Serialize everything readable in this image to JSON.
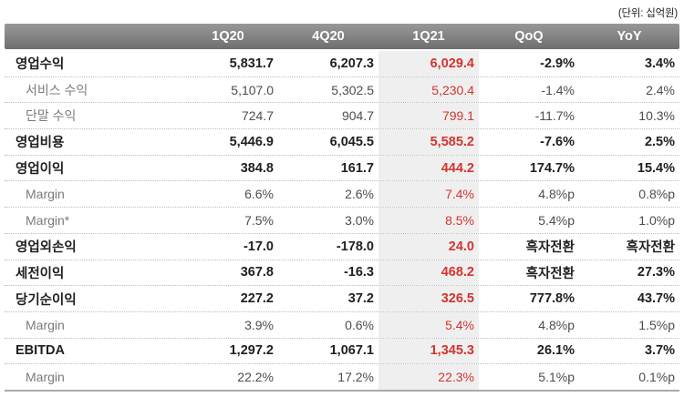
{
  "unit_label": "(단위: 십억원)",
  "colors": {
    "accent_red": "#d3342e",
    "header_bg": "#7f7f7f",
    "header_text": "#ffffff",
    "highlight_bg": "#efefef",
    "main_text": "#1f1f1f",
    "sub_text": "#7b7b7b"
  },
  "table": {
    "columns": [
      "",
      "1Q20",
      "4Q20",
      "1Q21",
      "QoQ",
      "YoY"
    ],
    "highlight_column": "1Q21",
    "rows": [
      {
        "label": "영업수익",
        "style": "main",
        "values": [
          "5,831.7",
          "6,207.3",
          "6,029.4",
          "-2.9%",
          "3.4%"
        ]
      },
      {
        "label": "서비스 수익",
        "style": "sub",
        "values": [
          "5,107.0",
          "5,302.5",
          "5,230.4",
          "-1.4%",
          "2.4%"
        ]
      },
      {
        "label": "단말 수익",
        "style": "sub",
        "values": [
          "724.7",
          "904.7",
          "799.1",
          "-11.7%",
          "10.3%"
        ]
      },
      {
        "label": "영업비용",
        "style": "main",
        "values": [
          "5,446.9",
          "6,045.5",
          "5,585.2",
          "-7.6%",
          "2.5%"
        ]
      },
      {
        "label": "영업이익",
        "style": "main",
        "values": [
          "384.8",
          "161.7",
          "444.2",
          "174.7%",
          "15.4%"
        ]
      },
      {
        "label": "Margin",
        "style": "sub",
        "values": [
          "6.6%",
          "2.6%",
          "7.4%",
          "4.8%p",
          "0.8%p"
        ]
      },
      {
        "label": "Margin*",
        "style": "sub",
        "values": [
          "7.5%",
          "3.0%",
          "8.5%",
          "5.4%p",
          "1.0%p"
        ]
      },
      {
        "label": "영업외손익",
        "style": "main",
        "values": [
          "-17.0",
          "-178.0",
          "24.0",
          "흑자전환",
          "흑자전환"
        ]
      },
      {
        "label": "세전이익",
        "style": "main",
        "values": [
          "367.8",
          "-16.3",
          "468.2",
          "흑자전환",
          "27.3%"
        ]
      },
      {
        "label": "당기순이익",
        "style": "main",
        "values": [
          "227.2",
          "37.2",
          "326.5",
          "777.8%",
          "43.7%"
        ]
      },
      {
        "label": "Margin",
        "style": "sub",
        "values": [
          "3.9%",
          "0.6%",
          "5.4%",
          "4.8%p",
          "1.5%p"
        ]
      },
      {
        "label": "EBITDA",
        "style": "main",
        "values": [
          "1,297.2",
          "1,067.1",
          "1,345.3",
          "26.1%",
          "3.7%"
        ]
      },
      {
        "label": "Margin",
        "style": "sub",
        "values": [
          "22.2%",
          "17.2%",
          "22.3%",
          "5.1%p",
          "0.1%p"
        ]
      }
    ]
  }
}
